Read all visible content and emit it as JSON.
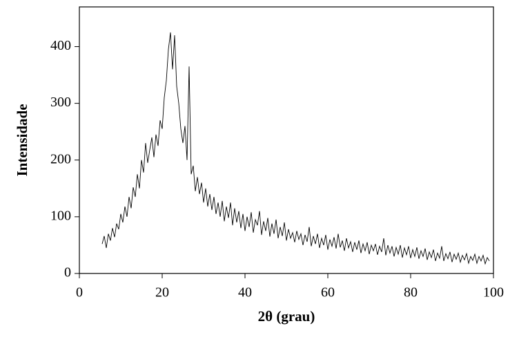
{
  "chart_data": {
    "type": "line",
    "xlabel": "2θ (grau)",
    "ylabel": "Intensidade",
    "color": "#000000",
    "xlim": [
      0,
      100
    ],
    "xticks": [
      0,
      20,
      40,
      60,
      80,
      100
    ],
    "ylim": [
      0,
      470
    ],
    "yticks": [
      0,
      100,
      200,
      300,
      400
    ],
    "x": [
      5.5,
      6,
      6.5,
      7,
      7.5,
      8,
      8.5,
      9,
      9.5,
      10,
      10.5,
      11,
      11.5,
      12,
      12.5,
      13,
      13.5,
      14,
      14.5,
      15,
      15.5,
      16,
      16.5,
      17,
      17.5,
      18,
      18.5,
      19,
      19.5,
      20,
      20.5,
      21,
      21.5,
      22,
      22.5,
      23,
      23.5,
      24,
      24.5,
      25,
      25.5,
      26,
      26.5,
      27,
      27.5,
      28,
      28.5,
      29,
      29.5,
      30,
      30.5,
      31,
      31.5,
      32,
      32.5,
      33,
      33.5,
      34,
      34.5,
      35,
      35.5,
      36,
      36.5,
      37,
      37.5,
      38,
      38.5,
      39,
      39.5,
      40,
      40.5,
      41,
      41.5,
      42,
      42.5,
      43,
      43.5,
      44,
      44.5,
      45,
      45.5,
      46,
      46.5,
      47,
      47.5,
      48,
      48.5,
      49,
      49.5,
      50,
      50.5,
      51,
      51.5,
      52,
      52.5,
      53,
      53.5,
      54,
      54.5,
      55,
      55.5,
      56,
      56.5,
      57,
      57.5,
      58,
      58.5,
      59,
      59.5,
      60,
      60.5,
      61,
      61.5,
      62,
      62.5,
      63,
      63.5,
      64,
      64.5,
      65,
      65.5,
      66,
      66.5,
      67,
      67.5,
      68,
      68.5,
      69,
      69.5,
      70,
      70.5,
      71,
      71.5,
      72,
      72.5,
      73,
      73.5,
      74,
      74.5,
      75,
      75.5,
      76,
      76.5,
      77,
      77.5,
      78,
      78.5,
      79,
      79.5,
      80,
      80.5,
      81,
      81.5,
      82,
      82.5,
      83,
      83.5,
      84,
      84.5,
      85,
      85.5,
      86,
      86.5,
      87,
      87.5,
      88,
      88.5,
      89,
      89.5,
      90,
      90.5,
      91,
      91.5,
      92,
      92.5,
      93,
      93.5,
      94,
      94.5,
      95,
      95.5,
      96,
      96.5,
      97,
      97.5,
      98,
      98.5,
      99
    ],
    "values": [
      52,
      66,
      45,
      70,
      58,
      80,
      64,
      88,
      78,
      105,
      90,
      118,
      100,
      135,
      115,
      152,
      135,
      175,
      150,
      200,
      178,
      230,
      195,
      218,
      240,
      205,
      245,
      225,
      270,
      255,
      310,
      340,
      395,
      425,
      360,
      420,
      330,
      300,
      255,
      230,
      260,
      200,
      365,
      175,
      190,
      145,
      170,
      140,
      160,
      125,
      150,
      118,
      140,
      112,
      135,
      105,
      125,
      100,
      128,
      92,
      118,
      98,
      125,
      85,
      115,
      90,
      110,
      80,
      105,
      75,
      100,
      82,
      108,
      72,
      95,
      85,
      110,
      68,
      92,
      75,
      98,
      65,
      88,
      70,
      95,
      62,
      82,
      66,
      90,
      58,
      78,
      62,
      72,
      55,
      75,
      60,
      70,
      50,
      68,
      56,
      82,
      48,
      66,
      52,
      70,
      45,
      62,
      50,
      68,
      42,
      60,
      48,
      64,
      44,
      70,
      46,
      58,
      40,
      62,
      45,
      56,
      38,
      55,
      42,
      58,
      36,
      52,
      40,
      55,
      34,
      50,
      40,
      52,
      33,
      48,
      38,
      62,
      32,
      50,
      36,
      48,
      30,
      46,
      34,
      50,
      28,
      45,
      33,
      48,
      27,
      42,
      30,
      46,
      26,
      40,
      30,
      44,
      24,
      38,
      28,
      42,
      22,
      36,
      27,
      48,
      22,
      35,
      26,
      38,
      20,
      34,
      25,
      36,
      20,
      32,
      24,
      35,
      18,
      30,
      23,
      34,
      18,
      30,
      22,
      32,
      17,
      28,
      22
    ]
  }
}
